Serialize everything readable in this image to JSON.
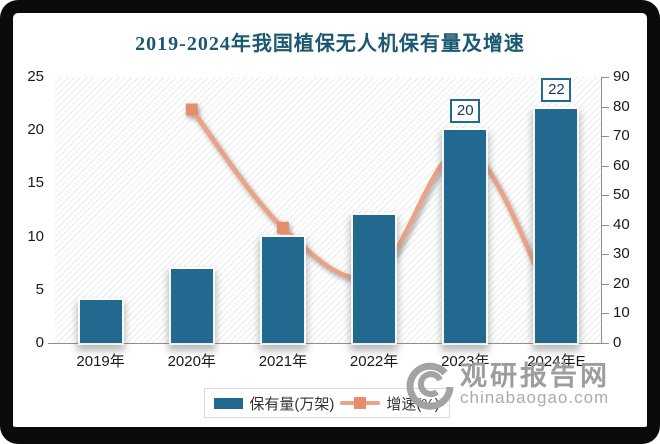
{
  "frame": {
    "background": "#ffffff",
    "border_color": "#0b0b0b"
  },
  "title_color": "#1b5872",
  "chart_data": {
    "type": "bar",
    "title": "2019-2024年我国植保无人机保有量及增速",
    "categories": [
      "2019年",
      "2020年",
      "2021年",
      "2022年",
      "2023年",
      "2024年E"
    ],
    "series": [
      {
        "name": "保有量(万架)",
        "type": "bar",
        "axis": "left",
        "values": [
          4,
          7,
          10,
          12,
          20,
          22
        ],
        "value_labels": [
          "",
          "",
          "",
          "",
          "20",
          "22"
        ],
        "color": "#21698e"
      },
      {
        "name": "增速(%)",
        "type": "line",
        "axis": "right",
        "values": [
          null,
          79,
          39,
          23,
          66,
          10
        ],
        "color": "#eca286",
        "marker_color": "#e48e6b"
      }
    ],
    "left_axis": {
      "min": 0,
      "max": 25,
      "ticks": [
        25,
        20,
        15,
        10,
        5,
        0
      ]
    },
    "right_axis": {
      "min": 0,
      "max": 90,
      "ticks": [
        90,
        80,
        70,
        60,
        50,
        40,
        30,
        20,
        10,
        0
      ]
    },
    "legend": {
      "position": "bottom",
      "entries": [
        "保有量(万架)",
        "增速(%)"
      ]
    },
    "grid": false,
    "plot_background": "diagonal-hatch"
  },
  "watermark": {
    "brand": "观研报告网",
    "domain": "chinabaogao.com",
    "icon": "swirl-logo-icon"
  }
}
